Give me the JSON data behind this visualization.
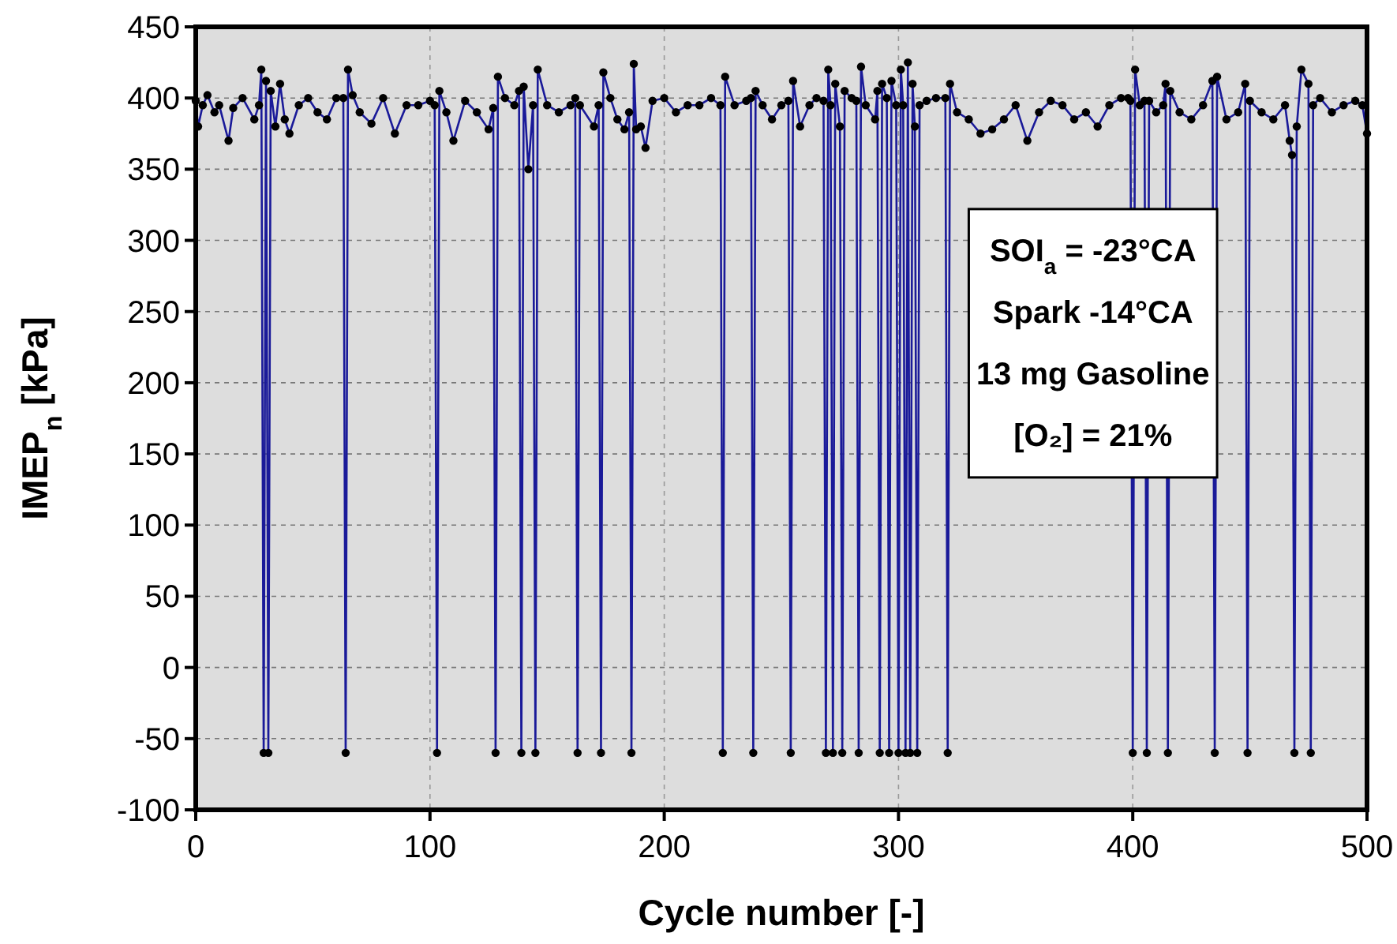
{
  "chart_data": {
    "type": "line",
    "xlabel": "Cycle number [-]",
    "ylabel": "IMEP$_{n}$ [kPa]",
    "xlim": [
      0,
      500
    ],
    "xticks": [
      0,
      100,
      200,
      300,
      400,
      500
    ],
    "ylim": [
      -100,
      450
    ],
    "yticks": [
      -100,
      -50,
      0,
      50,
      100,
      150,
      200,
      250,
      300,
      350,
      400,
      450
    ],
    "grid": true,
    "marker": "circle",
    "line_style": "solid",
    "annotations": [
      "SOI$_{a}$ = -23°CA",
      "Spark -14°CA",
      "13 mg Gasoline",
      "[O₂] = 21%"
    ],
    "series": [
      {
        "color": "#1a1a99",
        "x": [
          0,
          1,
          3,
          5,
          8,
          10,
          14,
          16,
          20,
          25,
          27,
          28,
          29,
          30,
          31,
          32,
          34,
          36,
          38,
          40,
          44,
          48,
          52,
          56,
          60,
          63,
          64,
          65,
          67,
          70,
          75,
          80,
          85,
          90,
          95,
          100,
          102,
          103,
          104,
          107,
          110,
          115,
          120,
          125,
          127,
          128,
          129,
          132,
          136,
          138,
          139,
          140,
          142,
          144,
          145,
          146,
          150,
          155,
          160,
          162,
          163,
          164,
          170,
          172,
          173,
          174,
          177,
          180,
          183,
          185,
          186,
          187,
          188,
          190,
          192,
          195,
          200,
          205,
          210,
          215,
          220,
          224,
          225,
          226,
          230,
          235,
          237,
          238,
          239,
          242,
          246,
          250,
          253,
          254,
          255,
          258,
          262,
          265,
          268,
          269,
          270,
          271,
          272,
          273,
          275,
          276,
          277,
          280,
          282,
          283,
          284,
          286,
          290,
          291,
          292,
          293,
          295,
          296,
          297,
          299,
          300,
          301,
          302,
          303,
          304,
          305,
          306,
          307,
          308,
          309,
          312,
          316,
          320,
          321,
          322,
          325,
          330,
          335,
          340,
          345,
          350,
          355,
          360,
          365,
          370,
          375,
          380,
          385,
          390,
          395,
          398,
          399,
          400,
          401,
          403,
          405,
          406,
          407,
          410,
          413,
          414,
          415,
          416,
          420,
          425,
          430,
          434,
          435,
          436,
          440,
          445,
          448,
          449,
          450,
          455,
          460,
          465,
          467,
          468,
          469,
          470,
          472,
          475,
          476,
          477,
          480,
          485,
          490,
          495,
          498,
          500
        ],
        "values": [
          398,
          380,
          395,
          402,
          390,
          395,
          370,
          393,
          400,
          385,
          395,
          420,
          -60,
          412,
          -60,
          405,
          380,
          410,
          385,
          375,
          395,
          400,
          390,
          385,
          400,
          400,
          -60,
          420,
          402,
          390,
          382,
          400,
          375,
          395,
          395,
          398,
          395,
          -60,
          405,
          390,
          370,
          398,
          390,
          378,
          393,
          -60,
          415,
          400,
          395,
          405,
          -60,
          408,
          350,
          395,
          -60,
          420,
          395,
          390,
          395,
          400,
          -60,
          395,
          380,
          395,
          -60,
          418,
          400,
          385,
          378,
          390,
          -60,
          424,
          378,
          380,
          365,
          398,
          400,
          390,
          395,
          395,
          400,
          395,
          -60,
          415,
          395,
          398,
          400,
          -60,
          405,
          395,
          385,
          395,
          398,
          -60,
          412,
          380,
          395,
          400,
          398,
          -60,
          420,
          395,
          -60,
          410,
          380,
          -60,
          405,
          400,
          398,
          -60,
          422,
          395,
          385,
          405,
          -60,
          410,
          400,
          -60,
          412,
          395,
          -60,
          420,
          395,
          -60,
          425,
          -60,
          410,
          380,
          -60,
          395,
          398,
          400,
          400,
          -60,
          410,
          390,
          385,
          375,
          378,
          385,
          395,
          370,
          390,
          398,
          395,
          385,
          390,
          380,
          395,
          400,
          400,
          398,
          -60,
          420,
          395,
          398,
          -60,
          398,
          390,
          395,
          410,
          -60,
          405,
          390,
          385,
          395,
          412,
          -60,
          415,
          385,
          390,
          410,
          -60,
          398,
          390,
          385,
          395,
          370,
          360,
          -60,
          380,
          420,
          410,
          -60,
          395,
          400,
          390,
          395,
          398,
          395,
          375
        ]
      }
    ]
  }
}
